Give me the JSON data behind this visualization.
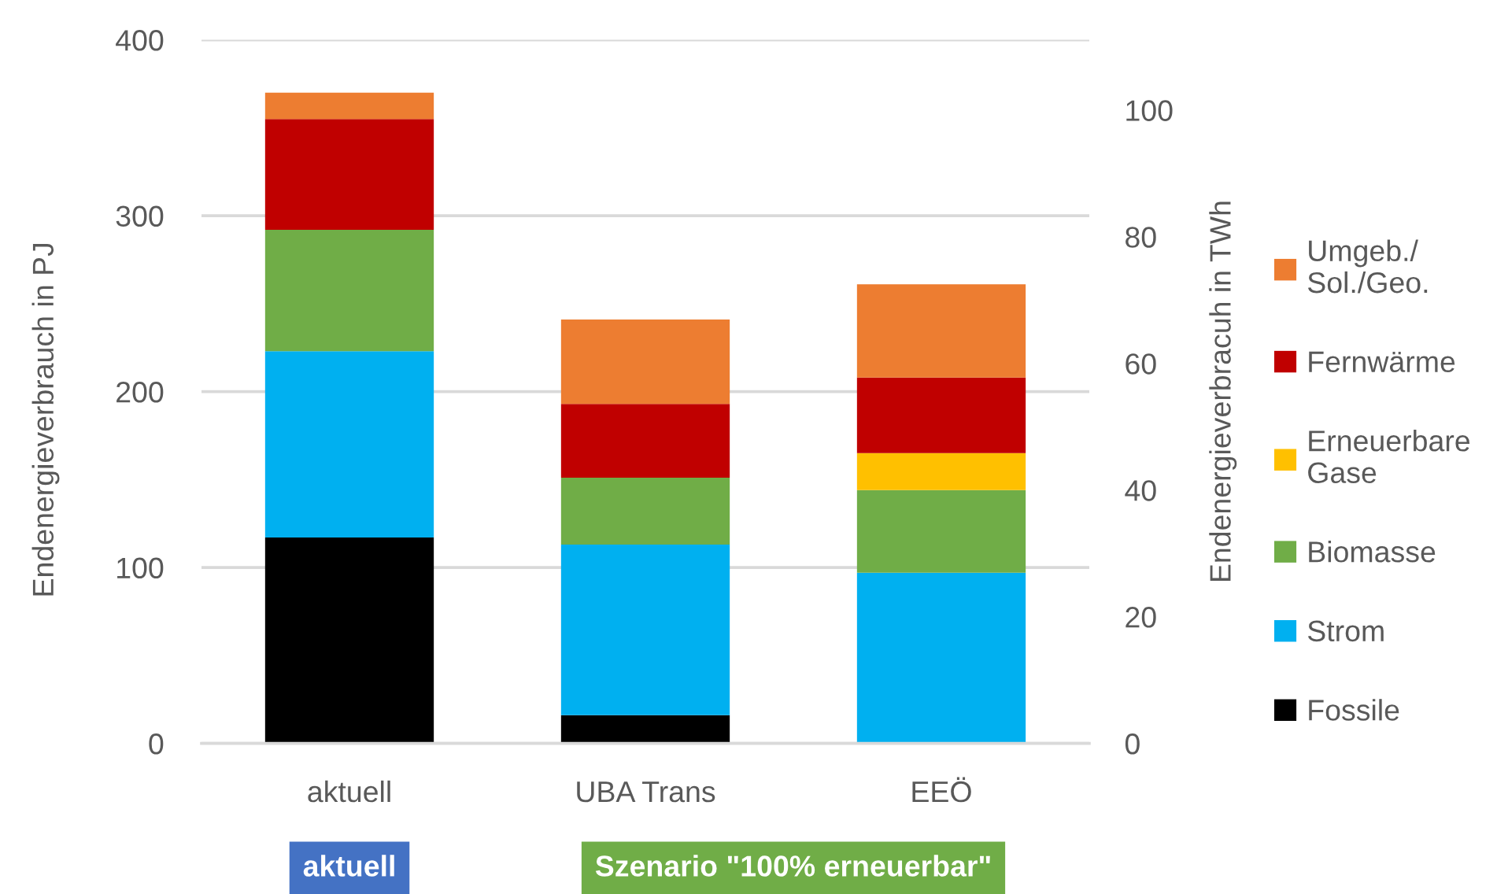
{
  "chart_data": {
    "type": "bar",
    "stacked": true,
    "categories": [
      "aktuell",
      "UBA Trans",
      "EEÖ"
    ],
    "series": [
      {
        "name": "Fossile",
        "color": "#000000",
        "values": [
          117,
          16,
          null
        ]
      },
      {
        "name": "Strom",
        "color": "#00b0f0",
        "values": [
          106,
          97,
          97
        ]
      },
      {
        "name": "Biomasse",
        "color": "#70ad47",
        "values": [
          69,
          38,
          47
        ]
      },
      {
        "name": "Erneuerbare\nGase",
        "color": "#ffc000",
        "values": [
          null,
          null,
          21
        ]
      },
      {
        "name": "Fernwärme",
        "color": "#c00000",
        "values": [
          63,
          42,
          43
        ]
      },
      {
        "name": "Umgeb./\nSol./Geo.",
        "color": "#ed7d31",
        "values": [
          15,
          48,
          53
        ]
      }
    ],
    "ylabel": "Endenergieverbrauch in PJ",
    "y2label": "Endenergieverbracuh in TWh",
    "ylim": [
      0,
      400
    ],
    "yticks": [
      0,
      100,
      200,
      300,
      400
    ],
    "y2lim": [
      0,
      111.1
    ],
    "y2ticks": [
      0,
      20,
      40,
      60,
      80,
      100
    ],
    "grid": "y",
    "legend": "right",
    "annotations": [
      "aktuell",
      "Szenario \"100% erneuerbar\""
    ]
  }
}
